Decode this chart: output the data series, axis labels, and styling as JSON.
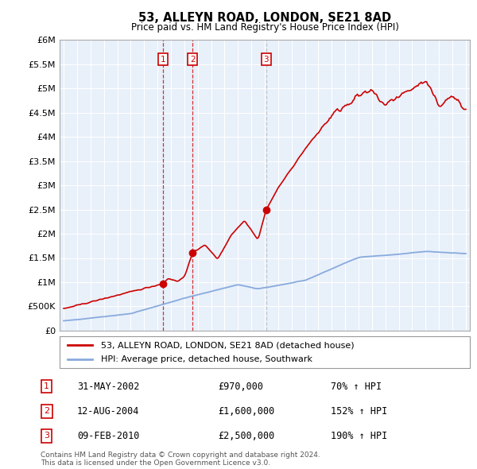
{
  "title": "53, ALLEYN ROAD, LONDON, SE21 8AD",
  "subtitle": "Price paid vs. HM Land Registry's House Price Index (HPI)",
  "legend_property": "53, ALLEYN ROAD, LONDON, SE21 8AD (detached house)",
  "legend_hpi": "HPI: Average price, detached house, Southwark",
  "transactions": [
    {
      "num": 1,
      "date": "31-MAY-2002",
      "price": 970000,
      "pct": "70%",
      "year": 2002.42
    },
    {
      "num": 2,
      "date": "12-AUG-2004",
      "price": 1600000,
      "pct": "152%",
      "year": 2004.62
    },
    {
      "num": 3,
      "date": "09-FEB-2010",
      "price": 2500000,
      "pct": "190%",
      "year": 2010.11
    }
  ],
  "note_line1": "Contains HM Land Registry data © Crown copyright and database right 2024.",
  "note_line2": "This data is licensed under the Open Government Licence v3.0.",
  "color_property": "#cc0000",
  "color_hpi": "#88aadd",
  "color_shade": "#e8f0fa",
  "ylim": [
    0,
    6000000
  ],
  "yticks": [
    0,
    500000,
    1000000,
    1500000,
    2000000,
    2500000,
    3000000,
    3500000,
    4000000,
    4500000,
    5000000,
    5500000,
    6000000
  ],
  "xlim_start": 1994.7,
  "xlim_end": 2025.3,
  "xticks": [
    1995,
    1996,
    1997,
    1998,
    1999,
    2000,
    2001,
    2002,
    2003,
    2004,
    2005,
    2006,
    2007,
    2008,
    2009,
    2010,
    2011,
    2012,
    2013,
    2014,
    2015,
    2016,
    2017,
    2018,
    2019,
    2020,
    2021,
    2022,
    2023,
    2024,
    2025
  ]
}
